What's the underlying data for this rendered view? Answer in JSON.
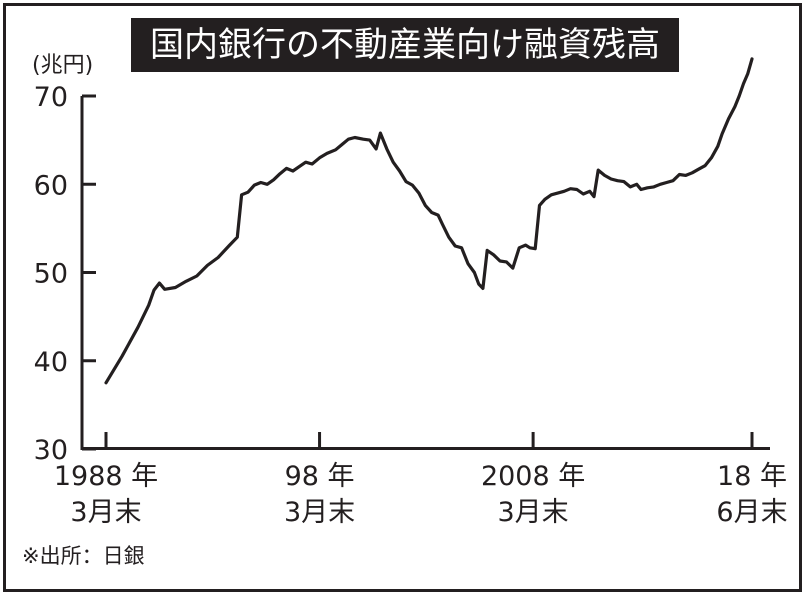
{
  "chart_data": {
    "type": "line",
    "title": "国内銀行の不動産業向け融資残高",
    "ylabel": "(兆円)",
    "ylim": [
      30,
      70
    ],
    "yticks": [
      30,
      40,
      50,
      60,
      70
    ],
    "xlim": [
      1988.25,
      2018.5
    ],
    "xticks": [
      {
        "x": 1988.25,
        "line1": "1988 年",
        "line2": "3月末"
      },
      {
        "x": 1998.25,
        "line1": "98 年",
        "line2": "3月末"
      },
      {
        "x": 2008.25,
        "line1": "2008 年",
        "line2": "3月末"
      },
      {
        "x": 2018.5,
        "line1": "18 年",
        "line2": "6月末"
      }
    ],
    "grid": false,
    "series": [
      {
        "color": "#231f20",
        "points": [
          [
            1988.25,
            37.5
          ],
          [
            1989.0,
            40.5
          ],
          [
            1989.75,
            43.8
          ],
          [
            1990.25,
            46.3
          ],
          [
            1990.5,
            48.0
          ],
          [
            1990.75,
            48.8
          ],
          [
            1991.0,
            48.1
          ],
          [
            1991.5,
            48.3
          ],
          [
            1992.0,
            49.0
          ],
          [
            1992.5,
            49.6
          ],
          [
            1993.0,
            50.8
          ],
          [
            1993.5,
            51.7
          ],
          [
            1994.0,
            53.0
          ],
          [
            1994.4,
            54.0
          ],
          [
            1994.6,
            58.8
          ],
          [
            1994.9,
            59.1
          ],
          [
            1995.2,
            59.9
          ],
          [
            1995.5,
            60.2
          ],
          [
            1995.8,
            60.0
          ],
          [
            1996.1,
            60.5
          ],
          [
            1996.4,
            61.2
          ],
          [
            1996.7,
            61.8
          ],
          [
            1997.0,
            61.5
          ],
          [
            1997.3,
            62.0
          ],
          [
            1997.6,
            62.5
          ],
          [
            1997.9,
            62.3
          ],
          [
            1998.25,
            63.0
          ],
          [
            1998.6,
            63.5
          ],
          [
            1999.0,
            63.9
          ],
          [
            1999.3,
            64.5
          ],
          [
            1999.6,
            65.1
          ],
          [
            1999.9,
            65.3
          ],
          [
            2000.3,
            65.1
          ],
          [
            2000.6,
            65.0
          ],
          [
            2000.9,
            64.0
          ],
          [
            2001.1,
            65.8
          ],
          [
            2001.4,
            64.0
          ],
          [
            2001.7,
            62.5
          ],
          [
            2002.0,
            61.5
          ],
          [
            2002.3,
            60.3
          ],
          [
            2002.6,
            59.9
          ],
          [
            2002.9,
            59.0
          ],
          [
            2003.2,
            57.6
          ],
          [
            2003.5,
            56.8
          ],
          [
            2003.8,
            56.5
          ],
          [
            2004.0,
            55.5
          ],
          [
            2004.3,
            54.0
          ],
          [
            2004.6,
            53.0
          ],
          [
            2004.9,
            52.8
          ],
          [
            2005.2,
            51.0
          ],
          [
            2005.5,
            50.0
          ],
          [
            2005.7,
            48.7
          ],
          [
            2005.9,
            48.2
          ],
          [
            2006.1,
            52.5
          ],
          [
            2006.4,
            52.0
          ],
          [
            2006.7,
            51.3
          ],
          [
            2007.0,
            51.2
          ],
          [
            2007.3,
            50.5
          ],
          [
            2007.6,
            52.8
          ],
          [
            2007.9,
            53.1
          ],
          [
            2008.1,
            52.8
          ],
          [
            2008.35,
            52.7
          ],
          [
            2008.55,
            57.6
          ],
          [
            2008.8,
            58.3
          ],
          [
            2009.1,
            58.8
          ],
          [
            2009.4,
            59.0
          ],
          [
            2009.7,
            59.2
          ],
          [
            2010.0,
            59.5
          ],
          [
            2010.3,
            59.4
          ],
          [
            2010.6,
            58.9
          ],
          [
            2010.9,
            59.2
          ],
          [
            2011.1,
            58.6
          ],
          [
            2011.3,
            61.6
          ],
          [
            2011.6,
            61.0
          ],
          [
            2011.9,
            60.6
          ],
          [
            2012.2,
            60.4
          ],
          [
            2012.5,
            60.3
          ],
          [
            2012.8,
            59.7
          ],
          [
            2013.1,
            60.0
          ],
          [
            2013.3,
            59.4
          ],
          [
            2013.6,
            59.6
          ],
          [
            2013.9,
            59.7
          ],
          [
            2014.2,
            60.0
          ],
          [
            2014.5,
            60.2
          ],
          [
            2014.8,
            60.4
          ],
          [
            2015.1,
            61.1
          ],
          [
            2015.4,
            61.0
          ],
          [
            2015.7,
            61.3
          ],
          [
            2016.0,
            61.7
          ],
          [
            2016.3,
            62.1
          ],
          [
            2016.6,
            63.0
          ],
          [
            2016.9,
            64.3
          ],
          [
            2017.1,
            65.7
          ],
          [
            2017.4,
            67.4
          ],
          [
            2017.7,
            68.8
          ],
          [
            2017.9,
            70.0
          ],
          [
            2018.1,
            71.4
          ],
          [
            2018.3,
            72.5
          ],
          [
            2018.5,
            74.2
          ]
        ]
      }
    ]
  },
  "source_note": "※出所：日銀"
}
